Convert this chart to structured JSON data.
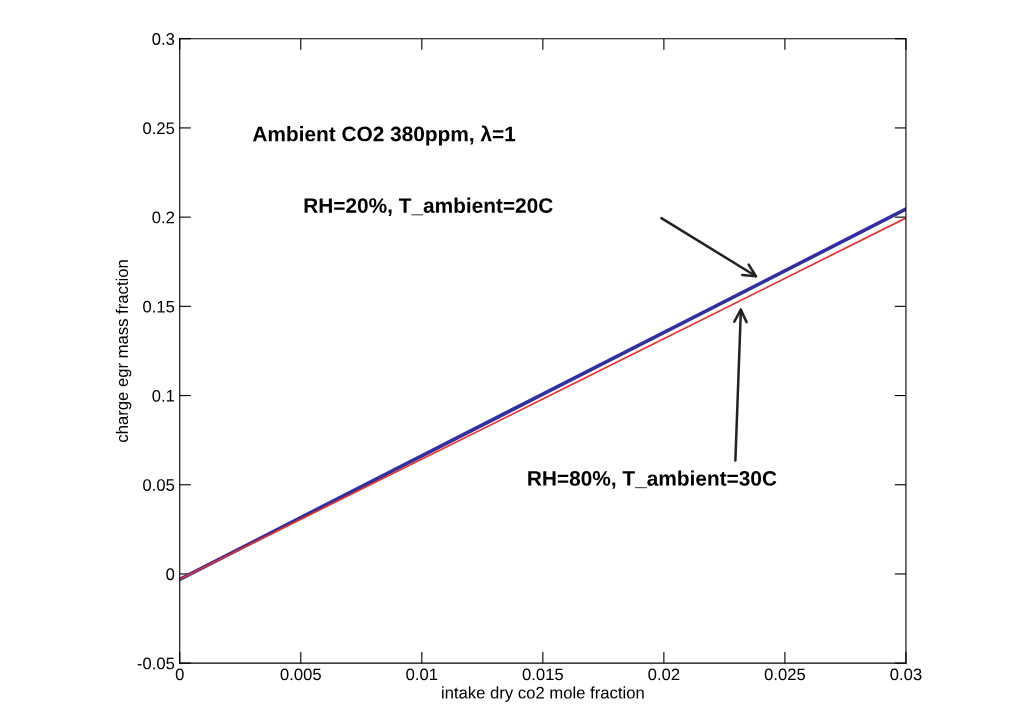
{
  "chart_data": {
    "type": "line",
    "xlabel": "intake dry co2 mole fraction",
    "ylabel": "charge egr mass fraction",
    "x": [
      0,
      0.015,
      0.03
    ],
    "series": [
      {
        "color": "#3030a0",
        "values": [
          -0.003,
          0.1008,
          0.2045
        ]
      },
      {
        "color": "#e03030",
        "values": [
          -0.003,
          0.098,
          0.1995
        ]
      }
    ],
    "annotations": [
      "Ambient CO2 380ppm, λ=1",
      "RH=20%, T_ambient=20C",
      "RH=80%, T_ambient=30C"
    ],
    "xlim": [
      0,
      0.03
    ],
    "ylim": [
      -0.05,
      0.3
    ],
    "xticks": [
      0,
      0.005,
      0.01,
      0.015,
      0.02,
      0.025,
      0.03
    ],
    "yticks": [
      -0.05,
      0,
      0.05,
      0.1,
      0.15,
      0.2,
      0.25,
      0.3
    ],
    "grid": false,
    "marker": "none",
    "line_style": "solid"
  }
}
